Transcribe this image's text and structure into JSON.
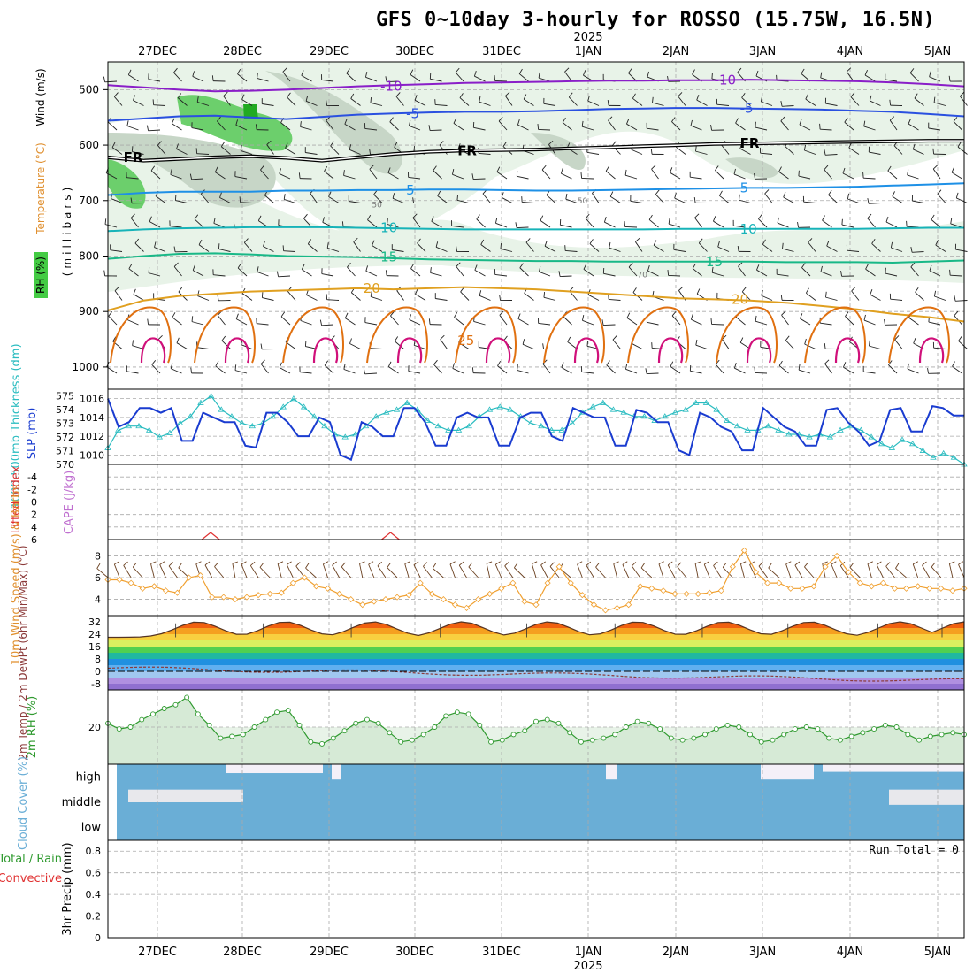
{
  "title": "GFS 0~10day 3-hourly for ROSSO (15.75W, 16.5N)",
  "colors": {
    "rh_light": "#e8f3e8",
    "rh_mid": "#c7d6c7",
    "rh_green": "#6ccf6c",
    "t_m10": "#8a1ec8",
    "t_m5": "#2a50e0",
    "t_fr": "#000000",
    "t_5": "#1e90e6",
    "t_10": "#17b3b8",
    "t_15": "#19b887",
    "t_20": "#e0a020",
    "t_25": "#e07010",
    "t_30": "#d0107a",
    "slp": "#1a3cd0",
    "thickness": "#2abcc0",
    "lifted": "#e03030",
    "wind10": "#f0a030",
    "rh2m": "#2f9a2f",
    "cloud": "#6aaed6",
    "dew": "#8b3a3a"
  },
  "chart_data": [
    {
      "type": "contour",
      "name": "upper",
      "ylabel_parts": [
        "RH (%)",
        "Temperature (°C)",
        "Wind (m/s)"
      ],
      "ylabel_mb": "(millibars)",
      "y_ticks": [
        "500",
        "600",
        "700",
        "800",
        "900",
        "1000"
      ],
      "y_range": [
        450,
        1040
      ],
      "top_x_labels": [
        "27DEC",
        "28DEC",
        "29DEC",
        "30DEC",
        "31DEC",
        "1JAN",
        "2JAN",
        "3JAN",
        "4JAN",
        "5JAN"
      ],
      "top_year": "2025",
      "isotherms": [
        {
          "label": "-10",
          "color_key": "t_m10",
          "levels": [
            492,
            496,
            500,
            503,
            502,
            500,
            497,
            494,
            492,
            490,
            488,
            487,
            486,
            485,
            484,
            484,
            483,
            483,
            482,
            483,
            484,
            485,
            487,
            490,
            494
          ]
        },
        {
          "label": "-5",
          "color_key": "t_m5",
          "levels": [
            556,
            552,
            548,
            547,
            550,
            553,
            549,
            545,
            543,
            541,
            540,
            540,
            539,
            537,
            535,
            534,
            533,
            533,
            534,
            535,
            536,
            538,
            540,
            544,
            548
          ]
        },
        {
          "label": "FR",
          "color_key": "t_fr",
          "levels": [
            622,
            628,
            625,
            622,
            620,
            623,
            628,
            622,
            616,
            612,
            610,
            609,
            608,
            606,
            604,
            602,
            600,
            598,
            597,
            596,
            595,
            594,
            593,
            592,
            592
          ]
        },
        {
          "label": "5",
          "color_key": "t_5",
          "levels": [
            690,
            686,
            684,
            684,
            684,
            682,
            682,
            681,
            681,
            680,
            680,
            681,
            682,
            682,
            681,
            680,
            679,
            678,
            677,
            677,
            676,
            675,
            673,
            671,
            669
          ]
        },
        {
          "label": "10",
          "color_key": "t_10",
          "levels": [
            755,
            752,
            750,
            749,
            748,
            748,
            748,
            749,
            750,
            751,
            752,
            752,
            752,
            752,
            752,
            752,
            751,
            751,
            751,
            751,
            751,
            751,
            750,
            749,
            749
          ]
        },
        {
          "label": "15",
          "color_key": "t_15",
          "levels": [
            805,
            800,
            796,
            795,
            797,
            800,
            801,
            802,
            804,
            806,
            807,
            808,
            809,
            809,
            810,
            810,
            810,
            810,
            810,
            811,
            811,
            811,
            812,
            810,
            808
          ]
        },
        {
          "label": "20",
          "color_key": "t_20",
          "levels": [
            898,
            880,
            872,
            868,
            864,
            862,
            860,
            858,
            860,
            858,
            856,
            858,
            860,
            864,
            868,
            872,
            876,
            878,
            880,
            884,
            890,
            896,
            904,
            910,
            918
          ]
        }
      ],
      "isotherm_labels": [
        {
          "text": "-10",
          "x": 0.31,
          "color_key": "t_m10"
        },
        {
          "text": "-10",
          "x": 0.7,
          "color_key": "t_m10"
        },
        {
          "text": "-5",
          "x": 0.34,
          "color_key": "t_m5"
        },
        {
          "text": "-5",
          "x": 0.73,
          "color_key": "t_m5"
        },
        {
          "text": "FR",
          "x": 0.01,
          "color_key": "t_fr"
        },
        {
          "text": "FR",
          "x": 0.4,
          "color_key": "t_fr"
        },
        {
          "text": "FR",
          "x": 0.73,
          "color_key": "t_fr"
        },
        {
          "text": "5",
          "x": 0.34,
          "color_key": "t_5"
        },
        {
          "text": "5",
          "x": 0.73,
          "color_key": "t_5"
        },
        {
          "text": "10",
          "x": 0.31,
          "color_key": "t_10"
        },
        {
          "text": "10",
          "x": 0.73,
          "color_key": "t_10"
        },
        {
          "text": "15",
          "x": 0.31,
          "color_key": "t_15"
        },
        {
          "text": "15",
          "x": 0.69,
          "color_key": "t_15"
        },
        {
          "text": "20",
          "x": 0.29,
          "color_key": "t_20"
        },
        {
          "text": "20",
          "x": 0.72,
          "color_key": "t_20"
        },
        {
          "text": "25",
          "x": 0.4,
          "color_key": "t_25"
        },
        {
          "text": "50",
          "x": 0.3,
          "color_key": "t_fr"
        },
        {
          "text": "50",
          "x": 0.54,
          "color_key": "t_fr"
        },
        {
          "text": "70",
          "x": 0.61,
          "color_key": "t_fr"
        }
      ]
    },
    {
      "type": "line",
      "name": "slp-thickness",
      "ylabel_left": "1000-500mb Thickness (dm)",
      "ylabel_right": "SLP (mb)",
      "y_ticks_left": [
        "575",
        "574",
        "573",
        "572",
        "571",
        "570"
      ],
      "y_ticks_right": [
        "1016",
        "1014",
        "1012",
        "1010"
      ],
      "slp_range": [
        1009,
        1017
      ],
      "thick_range": [
        570,
        575.5
      ],
      "series": [
        {
          "key": "slp",
          "values": [
            1016,
            1013,
            1013.5,
            1015,
            1015,
            1014.5,
            1015,
            1011.5,
            1011.5,
            1014.5,
            1014,
            1013.5,
            1013.5,
            1011,
            1010.8,
            1014.5,
            1014.5,
            1013.5,
            1012,
            1012,
            1014,
            1013.5,
            1010,
            1009.5,
            1013.5,
            1013,
            1012,
            1012,
            1015,
            1015,
            1013.5,
            1011,
            1011,
            1014,
            1014.5,
            1014,
            1014,
            1011,
            1011,
            1014,
            1014.5,
            1014.5,
            1012,
            1011.5,
            1015,
            1014.5,
            1014,
            1014,
            1011,
            1011,
            1014.8,
            1014.5,
            1013.5,
            1013.5,
            1010.5,
            1010,
            1014.5,
            1014,
            1013,
            1012.5,
            1010.5,
            1010.5,
            1015,
            1014,
            1013,
            1012.5,
            1011,
            1011,
            1014.8,
            1015,
            1013.5,
            1012.5,
            1011,
            1011.5,
            1014.8,
            1015,
            1012.5,
            1012.5,
            1015.2,
            1015,
            1014.2,
            1014.2
          ]
        },
        {
          "key": "thickness",
          "values": [
            571.2,
            572.5,
            572.8,
            572.8,
            572.5,
            572,
            572.3,
            573,
            573.5,
            574.5,
            575,
            574,
            573.5,
            573,
            572.8,
            573,
            573.5,
            574.2,
            574.8,
            574.2,
            573.5,
            572.8,
            572.2,
            572,
            572.2,
            572.8,
            573.5,
            573.8,
            574,
            574.5,
            574,
            573.2,
            572.8,
            572.5,
            572.5,
            572.8,
            573.5,
            574,
            574.2,
            574,
            573.5,
            573,
            572.8,
            572.5,
            572.5,
            573,
            573.8,
            574.2,
            574.5,
            574,
            573.8,
            573.5,
            573.5,
            573.2,
            573.5,
            573.8,
            574,
            574.5,
            574.5,
            574,
            573.2,
            572.8,
            572.5,
            572.5,
            572.8,
            572.5,
            572.2,
            572.2,
            572,
            572.2,
            572,
            572.5,
            572.8,
            572.5,
            572,
            571.5,
            571.2,
            571.8,
            571.5,
            571,
            570.5,
            570.8,
            570.5,
            570
          ]
        }
      ]
    },
    {
      "type": "line",
      "name": "cape-lifted",
      "ylabel_left": "Lifted Index",
      "ylabel_right": "CAPE (J/kg)",
      "y_ticks": [
        "-4",
        "-2",
        "0",
        "2",
        "4",
        "6"
      ],
      "y_range": [
        -6,
        6
      ],
      "bumps_x": [
        0.12,
        0.33
      ]
    },
    {
      "type": "line",
      "name": "wind10",
      "ylabel": "10m Wind Speed (m/s) & Barbs",
      "y_ticks": [
        "8",
        "6",
        "4"
      ],
      "y_range": [
        2.5,
        9.5
      ],
      "values": [
        5.8,
        5.8,
        5.5,
        5,
        5.2,
        4.8,
        4.6,
        6,
        6.2,
        4.2,
        4.2,
        4,
        4.2,
        4.4,
        4.5,
        4.6,
        5.5,
        6,
        5.2,
        5,
        4.5,
        4,
        3.5,
        3.8,
        4,
        4.2,
        4.4,
        5.5,
        4.5,
        4,
        3.5,
        3.2,
        4,
        4.5,
        5,
        5.5,
        3.8,
        3.5,
        5.5,
        7,
        5.5,
        4.4,
        3.5,
        3,
        3.2,
        3.5,
        5.2,
        5,
        4.8,
        4.5,
        4.5,
        4.5,
        4.6,
        4.8,
        7,
        8.5,
        6.5,
        5.5,
        5.5,
        5,
        5,
        5.2,
        7,
        8,
        6.5,
        5.5,
        5.2,
        5.5,
        5,
        5,
        5.2,
        5,
        5,
        4.8,
        5
      ]
    },
    {
      "type": "area",
      "name": "temp2m",
      "ylabel": "2m Temp / 2m DewPt (6hr Min/Max) (°C)",
      "y_ticks": [
        "32",
        "24",
        "16",
        "8",
        "0",
        "-8"
      ],
      "y_range": [
        -12,
        36
      ],
      "peaks_x": [
        0.105,
        0.207,
        0.31,
        0.414,
        0.515,
        0.618,
        0.72,
        0.82,
        0.925,
        1.0
      ]
    },
    {
      "type": "area",
      "name": "rh2m",
      "ylabel": "2m RH (%)",
      "y_ticks": [
        "20"
      ],
      "y_range": [
        0,
        40
      ],
      "values": [
        22,
        19,
        20,
        24,
        27,
        30,
        32,
        36,
        27,
        21,
        14,
        15,
        16,
        20,
        24,
        28,
        29,
        21,
        12,
        11,
        14,
        18,
        22,
        24,
        22,
        17,
        12,
        13,
        16,
        20,
        26,
        28,
        27,
        21,
        12,
        13,
        16,
        18,
        23,
        24,
        22,
        17,
        12,
        13,
        14,
        16,
        20,
        23,
        22,
        19,
        14,
        13,
        14,
        16,
        19,
        21,
        20,
        16,
        12,
        13,
        16,
        19,
        20,
        19,
        14,
        13,
        15,
        17,
        19,
        21,
        20,
        16,
        13,
        15,
        16,
        17,
        16
      ]
    },
    {
      "type": "heatmap",
      "name": "cloud",
      "ylabel": "Cloud Cover (%)",
      "y_labels": [
        "high",
        "middle",
        "low"
      ]
    },
    {
      "type": "bar",
      "name": "precip",
      "ylabel_left": "3hr Precip (mm)",
      "ylabel_part1": "Total / Rain",
      "ylabel_part2": "Convective",
      "y_ticks": [
        "0.8",
        "0.6",
        "0.4",
        "0.2",
        "0"
      ],
      "run_total": "Run Total = 0",
      "bottom_x_labels": [
        "27DEC",
        "28DEC",
        "29DEC",
        "30DEC",
        "31DEC",
        "1JAN",
        "2JAN",
        "3JAN",
        "4JAN",
        "5JAN"
      ],
      "bottom_year": "2025"
    }
  ]
}
